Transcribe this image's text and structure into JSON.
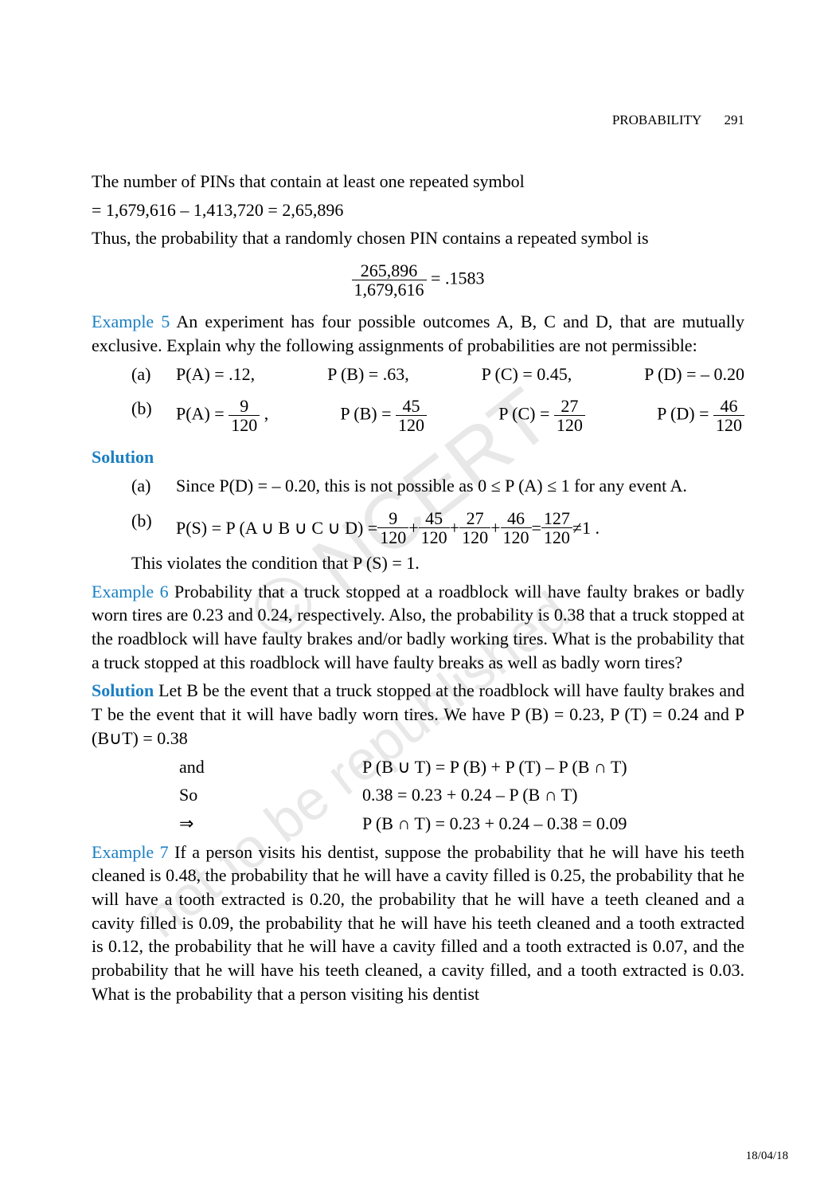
{
  "header": {
    "chapter": "PROBABILITY",
    "page_no": "291"
  },
  "intro": {
    "line1": "The number of PINs that contain at least one repeated symbol",
    "line2": "= 1,679,616 – 1,413,720 = 2,65,896",
    "line3": "Thus, the probability that a randomly chosen PIN contains a repeated symbol is",
    "frac_num": "265,896",
    "frac_den": "1,679,616",
    "frac_eq": " = .1583"
  },
  "ex5": {
    "label": "Example 5",
    "text": "  An experiment has four possible outcomes A, B, C and D, that are mutually exclusive. Explain why the following assignments of probabilities are not permissible:",
    "a_lbl": "(a)",
    "a1": "P(A) = .12,",
    "a2": "P (B) = .63,",
    "a3": "P (C) = 0.45,",
    "a4": "P (D) = – 0.20",
    "b_lbl": "(b)",
    "b1_pre": "P(A) = ",
    "b1_num": "9",
    "b1_den": "120",
    "b1_post": " ,",
    "b2_pre": "P (B) =  ",
    "b2_num": "45",
    "b2_den": "120",
    "b3_pre": "P (C) =  ",
    "b3_num": "27",
    "b3_den": "120",
    "b4_pre": "P (D) =  ",
    "b4_num": "46",
    "b4_den": "120"
  },
  "sol5": {
    "label": "Solution",
    "a_lbl": "(a)",
    "a_txt": "Since P(D) = – 0.20, this is not possible as 0 ≤ P (A) ≤ 1 for any event A.",
    "b_lbl": "(b)",
    "b_pre": "P(S) = P (A ∪ B ∪ C ∪ D) = ",
    "f1n": "9",
    "f1d": "120",
    "plus": " + ",
    "f2n": "45",
    "f2d": "120",
    "f3n": "27",
    "f3d": "120",
    "f4n": "46",
    "f4d": "120",
    "eq": " = ",
    "f5n": "127",
    "f5d": "120",
    "neq": " ≠1 .",
    "tail": "This violates the condition that P (S) = 1."
  },
  "ex6": {
    "label": "Example 6",
    "text": "  Probability that a truck stopped at a roadblock will have faulty brakes or badly worn tires are 0.23 and 0.24, respectively. Also, the probability is 0.38 that a truck stopped at the roadblock will have faulty brakes and/or badly working tires. What is the probability that a truck stopped at this roadblock will have faulty breaks as well as badly worn tires?"
  },
  "sol6": {
    "label": "Solution",
    "text": "  Let B be the event that a truck stopped at the roadblock will have faulty brakes and T be the event that it will have badly worn tires. We have P (B) = 0.23, P (T) = 0.24 and P (B∪T) = 0.38",
    "r1a": "and",
    "r1b": "",
    "r1c": "P (B ∪ T) = P (B) + P (T) – P (B ∩ T)",
    "r2a": "So",
    "r2b": "",
    "r2c": "0.38 = 0.23 + 0.24 – P (B ∩ T)",
    "r3a": "⇒",
    "r3b": "",
    "r3c": "P (B ∩ T) = 0.23 + 0.24 – 0.38 = 0.09"
  },
  "ex7": {
    "label": "Example 7",
    "text": "  If a person visits his dentist, suppose the probability that he will have his teeth cleaned is 0.48, the probability that he will have a cavity filled is 0.25, the probability that he will have a tooth extracted is 0.20, the probability that he will have a teeth cleaned and a cavity filled is 0.09, the probability that he will have his teeth cleaned and a tooth extracted is 0.12, the probability that he will have a cavity filled and a tooth extracted is 0.07, and the probability that he will have his teeth cleaned, a cavity filled, and a tooth extracted is 0.03. What is the probability that a person visiting his dentist"
  },
  "footer": {
    "date": "18/04/18"
  }
}
